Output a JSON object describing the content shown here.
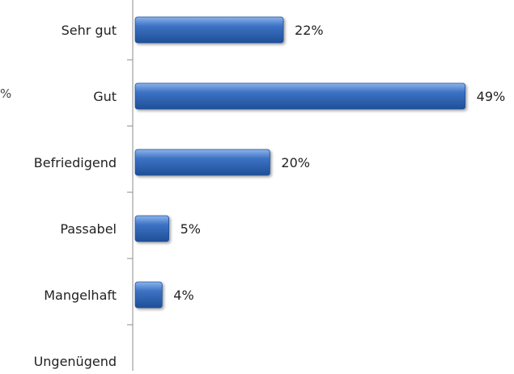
{
  "chart_data": {
    "type": "bar",
    "orientation": "horizontal",
    "categories": [
      "Sehr gut",
      "Gut",
      "Befriedigend",
      "Passabel",
      "Mangelhaft",
      "Ungenügend"
    ],
    "values": [
      22,
      49,
      20,
      5,
      4,
      0
    ],
    "data_labels": [
      "22%",
      "49%",
      "20%",
      "5%",
      "4%",
      ""
    ],
    "value_unit": "%",
    "xlim": [
      0,
      50
    ],
    "bar_color": "#3d72c4",
    "bar_highlight": "#8db4ec",
    "bar_shadow": "#1f4f97",
    "grid": false,
    "legend": "none",
    "partial_left_text": "%"
  }
}
